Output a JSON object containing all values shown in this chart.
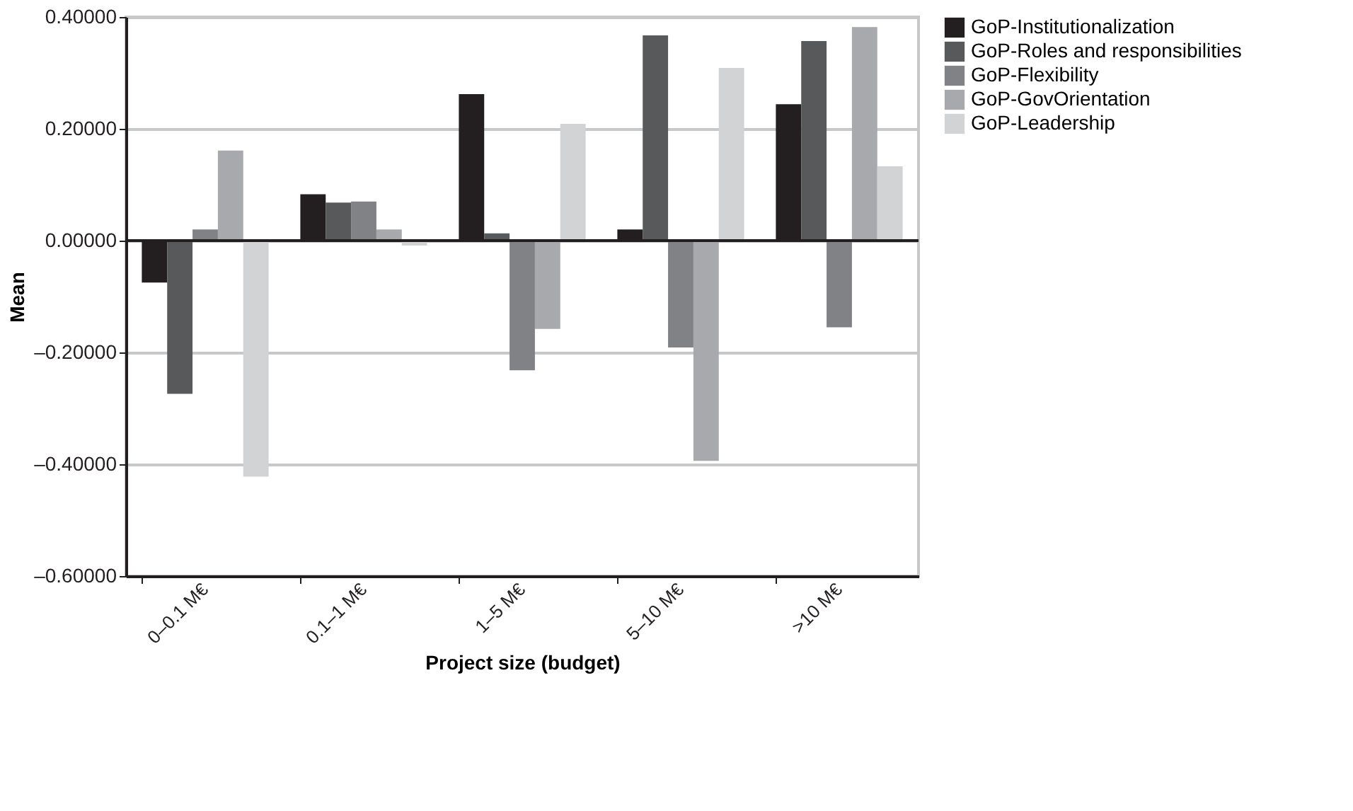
{
  "chart_data": {
    "type": "bar",
    "xlabel": "Project size (budget)",
    "ylabel": "Mean",
    "categories": [
      "0–0.1 M€",
      "0.1–1 M€",
      "1–5 M€",
      "5–10 M€",
      ">10 M€"
    ],
    "series": [
      {
        "name": "GoP-Institutionalization",
        "color": "#231f20",
        "values": [
          -0.075,
          0.083,
          0.262,
          0.02,
          0.244
        ]
      },
      {
        "name": "GoP-Roles and responsibilities",
        "color": "#58595b",
        "values": [
          -0.274,
          0.068,
          0.013,
          0.367,
          0.357
        ]
      },
      {
        "name": "GoP-Flexibility",
        "color": "#808285",
        "values": [
          0.02,
          0.07,
          -0.232,
          -0.191,
          -0.155
        ]
      },
      {
        "name": "GoP-GovOrientation",
        "color": "#a7a9ac",
        "values": [
          0.161,
          0.02,
          -0.158,
          -0.394,
          0.382
        ]
      },
      {
        "name": "GoP-Leadership",
        "color": "#d1d3d4",
        "values": [
          -0.422,
          -0.009,
          0.209,
          0.309,
          0.133
        ]
      }
    ],
    "ylim": [
      -0.6,
      0.4
    ],
    "yticks": [
      {
        "value": -0.6,
        "label": "–0.60000"
      },
      {
        "value": -0.4,
        "label": "–0.40000"
      },
      {
        "value": -0.2,
        "label": "–0.20000"
      },
      {
        "value": 0,
        "label": "0.00000"
      },
      {
        "value": 0.2,
        "label": "0.20000"
      },
      {
        "value": 0.4,
        "label": "0.40000"
      }
    ],
    "ref_lines": [
      {
        "axis": "y",
        "value": 0,
        "color": "#231f20"
      }
    ],
    "grid": "y",
    "legend": "right"
  }
}
